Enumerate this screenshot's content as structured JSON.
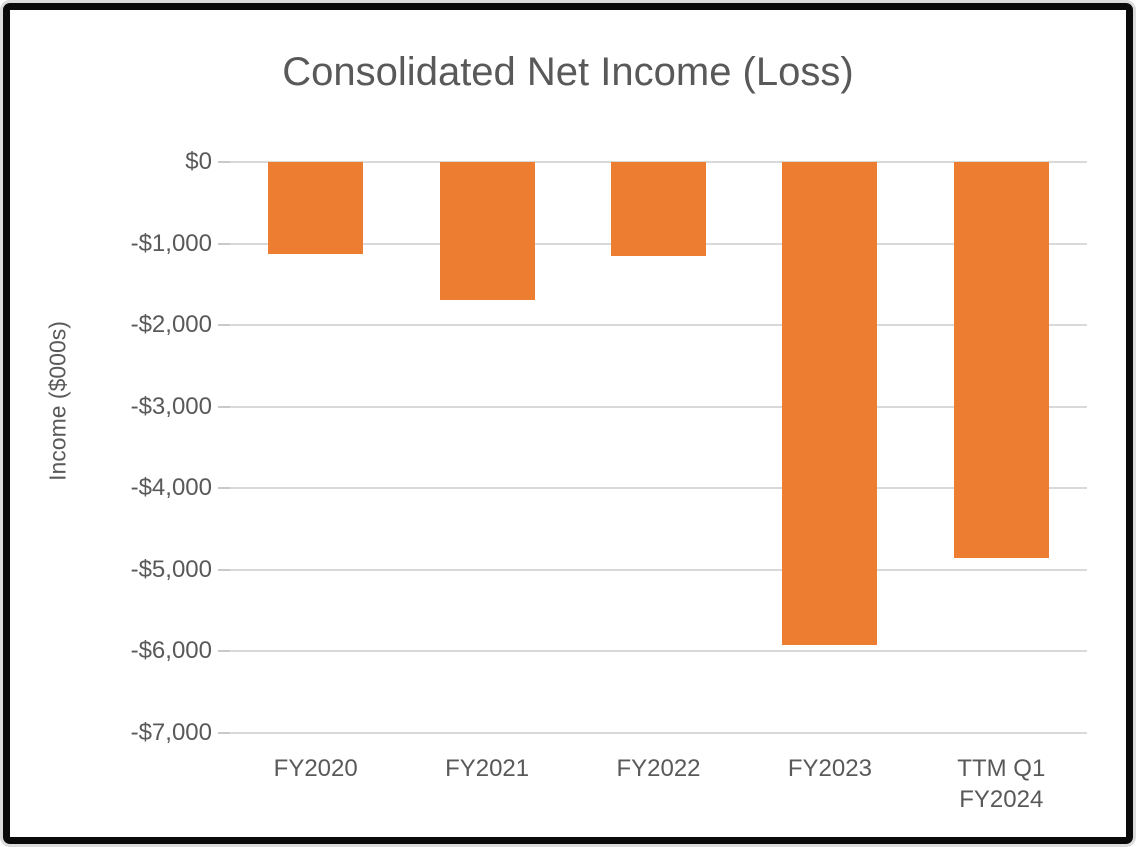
{
  "chart_data": {
    "type": "bar",
    "title": "Consolidated Net Income (Loss)",
    "xlabel": "",
    "ylabel": "Income ($000s)",
    "categories": [
      "FY2020",
      "FY2021",
      "FY2022",
      "FY2023",
      "TTM Q1\nFY2024"
    ],
    "values": [
      -1130,
      -1690,
      -1150,
      -5930,
      -4860
    ],
    "units": "thousands of dollars",
    "ylim": [
      -7000,
      0
    ],
    "ytick_step": 1000,
    "ytick_labels": [
      "$0",
      "-$1,000",
      "-$2,000",
      "-$3,000",
      "-$4,000",
      "-$5,000",
      "-$6,000",
      "-$7,000"
    ],
    "grid": true,
    "legend_position": "none",
    "bar_color": "#ED7D31",
    "gridline_color": "#D9D9D9",
    "text_color": "#595959",
    "background_color": "#FFFFFF",
    "border_color": "#0A0A0A"
  }
}
